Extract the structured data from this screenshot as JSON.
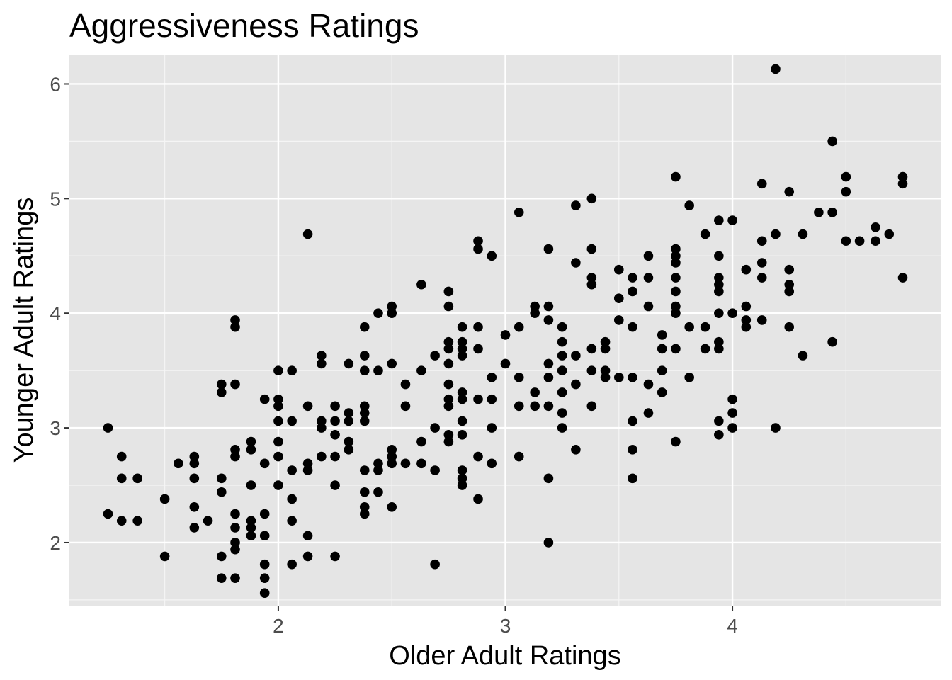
{
  "chart_data": {
    "type": "scatter",
    "title": "Aggressiveness Ratings",
    "xlabel": "Older Adult Ratings",
    "ylabel": "Younger Adult Ratings",
    "xlim": [
      1.08,
      4.92
    ],
    "ylim": [
      1.45,
      6.25
    ],
    "x_ticks": [
      2,
      3,
      4
    ],
    "y_ticks": [
      2,
      3,
      4,
      5,
      6
    ],
    "x_tick_labels": [
      "2",
      "3",
      "4"
    ],
    "y_tick_labels": [
      "2",
      "3",
      "4",
      "5",
      "6"
    ],
    "grid": true,
    "panel_color": "#e5e5e5",
    "point_color": "#000000",
    "points": [
      [
        1.25,
        3.0
      ],
      [
        1.25,
        2.25
      ],
      [
        1.31,
        2.75
      ],
      [
        1.31,
        2.56
      ],
      [
        1.31,
        2.19
      ],
      [
        1.38,
        2.56
      ],
      [
        1.38,
        2.19
      ],
      [
        1.5,
        2.38
      ],
      [
        1.5,
        1.88
      ],
      [
        1.56,
        2.69
      ],
      [
        1.63,
        2.75
      ],
      [
        1.63,
        2.69
      ],
      [
        1.63,
        2.56
      ],
      [
        1.63,
        2.31
      ],
      [
        1.63,
        2.13
      ],
      [
        1.69,
        2.19
      ],
      [
        1.75,
        3.38
      ],
      [
        1.75,
        3.31
      ],
      [
        1.75,
        2.56
      ],
      [
        1.75,
        2.44
      ],
      [
        1.75,
        1.88
      ],
      [
        1.75,
        1.69
      ],
      [
        1.81,
        3.94
      ],
      [
        1.81,
        3.88
      ],
      [
        1.81,
        3.38
      ],
      [
        1.81,
        2.81
      ],
      [
        1.81,
        2.75
      ],
      [
        1.81,
        2.25
      ],
      [
        1.81,
        2.13
      ],
      [
        1.81,
        2.0
      ],
      [
        1.81,
        1.94
      ],
      [
        1.81,
        1.69
      ],
      [
        1.88,
        2.88
      ],
      [
        1.88,
        2.81
      ],
      [
        1.88,
        2.5
      ],
      [
        1.88,
        2.19
      ],
      [
        1.88,
        2.13
      ],
      [
        1.88,
        2.06
      ],
      [
        1.94,
        3.25
      ],
      [
        1.94,
        2.69
      ],
      [
        1.94,
        2.25
      ],
      [
        1.94,
        2.06
      ],
      [
        1.94,
        1.81
      ],
      [
        1.94,
        1.69
      ],
      [
        1.94,
        1.56
      ],
      [
        2.0,
        3.5
      ],
      [
        2.0,
        3.25
      ],
      [
        2.0,
        3.19
      ],
      [
        2.0,
        3.06
      ],
      [
        2.0,
        2.88
      ],
      [
        2.0,
        2.75
      ],
      [
        2.0,
        2.5
      ],
      [
        2.06,
        3.5
      ],
      [
        2.06,
        3.06
      ],
      [
        2.06,
        2.63
      ],
      [
        2.06,
        2.38
      ],
      [
        2.06,
        2.19
      ],
      [
        2.06,
        1.81
      ],
      [
        2.13,
        4.69
      ],
      [
        2.13,
        3.19
      ],
      [
        2.13,
        2.69
      ],
      [
        2.13,
        2.63
      ],
      [
        2.13,
        2.06
      ],
      [
        2.13,
        1.88
      ],
      [
        2.19,
        3.63
      ],
      [
        2.19,
        3.56
      ],
      [
        2.19,
        3.06
      ],
      [
        2.19,
        3.0
      ],
      [
        2.19,
        2.75
      ],
      [
        2.25,
        3.19
      ],
      [
        2.25,
        3.06
      ],
      [
        2.25,
        2.94
      ],
      [
        2.25,
        2.75
      ],
      [
        2.25,
        2.5
      ],
      [
        2.25,
        1.88
      ],
      [
        2.31,
        3.56
      ],
      [
        2.31,
        3.13
      ],
      [
        2.31,
        3.06
      ],
      [
        2.31,
        2.88
      ],
      [
        2.31,
        2.81
      ],
      [
        2.38,
        3.88
      ],
      [
        2.38,
        3.63
      ],
      [
        2.38,
        3.5
      ],
      [
        2.38,
        3.19
      ],
      [
        2.38,
        3.13
      ],
      [
        2.38,
        3.06
      ],
      [
        2.38,
        2.63
      ],
      [
        2.38,
        2.44
      ],
      [
        2.38,
        2.31
      ],
      [
        2.38,
        2.25
      ],
      [
        2.44,
        4.0
      ],
      [
        2.44,
        3.5
      ],
      [
        2.44,
        2.69
      ],
      [
        2.44,
        2.63
      ],
      [
        2.44,
        2.44
      ],
      [
        2.5,
        4.06
      ],
      [
        2.5,
        4.0
      ],
      [
        2.5,
        3.56
      ],
      [
        2.5,
        2.81
      ],
      [
        2.5,
        2.75
      ],
      [
        2.5,
        2.69
      ],
      [
        2.5,
        2.31
      ],
      [
        2.56,
        3.38
      ],
      [
        2.56,
        3.19
      ],
      [
        2.56,
        2.69
      ],
      [
        2.63,
        4.25
      ],
      [
        2.63,
        3.5
      ],
      [
        2.63,
        2.88
      ],
      [
        2.63,
        2.69
      ],
      [
        2.69,
        3.63
      ],
      [
        2.69,
        3.0
      ],
      [
        2.69,
        2.63
      ],
      [
        2.69,
        1.81
      ],
      [
        2.75,
        4.19
      ],
      [
        2.75,
        4.06
      ],
      [
        2.75,
        3.75
      ],
      [
        2.75,
        3.69
      ],
      [
        2.75,
        3.56
      ],
      [
        2.75,
        3.38
      ],
      [
        2.75,
        3.25
      ],
      [
        2.75,
        3.19
      ],
      [
        2.75,
        2.94
      ],
      [
        2.75,
        2.88
      ],
      [
        2.81,
        3.88
      ],
      [
        2.81,
        3.75
      ],
      [
        2.81,
        3.69
      ],
      [
        2.81,
        3.63
      ],
      [
        2.81,
        3.31
      ],
      [
        2.81,
        3.25
      ],
      [
        2.81,
        3.06
      ],
      [
        2.81,
        2.94
      ],
      [
        2.81,
        2.63
      ],
      [
        2.81,
        2.56
      ],
      [
        2.81,
        2.5
      ],
      [
        2.88,
        4.63
      ],
      [
        2.88,
        4.56
      ],
      [
        2.88,
        3.88
      ],
      [
        2.88,
        3.69
      ],
      [
        2.88,
        3.25
      ],
      [
        2.88,
        2.75
      ],
      [
        2.88,
        2.38
      ],
      [
        2.94,
        4.5
      ],
      [
        2.94,
        3.44
      ],
      [
        2.94,
        3.25
      ],
      [
        2.94,
        3.0
      ],
      [
        2.94,
        2.69
      ],
      [
        3.0,
        3.81
      ],
      [
        3.0,
        3.56
      ],
      [
        3.06,
        4.88
      ],
      [
        3.06,
        3.88
      ],
      [
        3.06,
        3.44
      ],
      [
        3.06,
        3.19
      ],
      [
        3.06,
        2.75
      ],
      [
        3.13,
        4.06
      ],
      [
        3.13,
        4.0
      ],
      [
        3.13,
        3.31
      ],
      [
        3.13,
        3.19
      ],
      [
        3.19,
        4.56
      ],
      [
        3.19,
        4.06
      ],
      [
        3.19,
        3.94
      ],
      [
        3.19,
        3.56
      ],
      [
        3.19,
        3.44
      ],
      [
        3.19,
        3.19
      ],
      [
        3.19,
        2.56
      ],
      [
        3.19,
        2.0
      ],
      [
        3.25,
        3.88
      ],
      [
        3.25,
        3.75
      ],
      [
        3.25,
        3.63
      ],
      [
        3.25,
        3.5
      ],
      [
        3.25,
        3.31
      ],
      [
        3.25,
        3.13
      ],
      [
        3.25,
        3.0
      ],
      [
        3.31,
        4.94
      ],
      [
        3.31,
        4.44
      ],
      [
        3.31,
        3.63
      ],
      [
        3.31,
        3.38
      ],
      [
        3.31,
        2.81
      ],
      [
        3.38,
        5.0
      ],
      [
        3.38,
        4.56
      ],
      [
        3.38,
        4.31
      ],
      [
        3.38,
        4.25
      ],
      [
        3.38,
        3.69
      ],
      [
        3.38,
        3.5
      ],
      [
        3.38,
        3.19
      ],
      [
        3.44,
        3.75
      ],
      [
        3.44,
        3.69
      ],
      [
        3.44,
        3.5
      ],
      [
        3.44,
        3.44
      ],
      [
        3.5,
        4.38
      ],
      [
        3.5,
        4.13
      ],
      [
        3.5,
        3.94
      ],
      [
        3.5,
        3.44
      ],
      [
        3.56,
        4.31
      ],
      [
        3.56,
        4.19
      ],
      [
        3.56,
        3.88
      ],
      [
        3.56,
        3.44
      ],
      [
        3.56,
        3.06
      ],
      [
        3.56,
        2.81
      ],
      [
        3.56,
        2.56
      ],
      [
        3.63,
        4.5
      ],
      [
        3.63,
        4.31
      ],
      [
        3.63,
        4.06
      ],
      [
        3.63,
        3.38
      ],
      [
        3.63,
        3.13
      ],
      [
        3.69,
        3.81
      ],
      [
        3.69,
        3.69
      ],
      [
        3.69,
        3.5
      ],
      [
        3.69,
        3.31
      ],
      [
        3.75,
        5.19
      ],
      [
        3.75,
        4.56
      ],
      [
        3.75,
        4.5
      ],
      [
        3.75,
        4.44
      ],
      [
        3.75,
        4.31
      ],
      [
        3.75,
        4.19
      ],
      [
        3.75,
        4.06
      ],
      [
        3.75,
        4.0
      ],
      [
        3.75,
        3.69
      ],
      [
        3.75,
        2.88
      ],
      [
        3.81,
        4.94
      ],
      [
        3.81,
        3.88
      ],
      [
        3.81,
        3.44
      ],
      [
        3.88,
        4.69
      ],
      [
        3.88,
        3.88
      ],
      [
        3.88,
        3.69
      ],
      [
        3.94,
        4.81
      ],
      [
        3.94,
        4.5
      ],
      [
        3.94,
        4.31
      ],
      [
        3.94,
        4.25
      ],
      [
        3.94,
        4.19
      ],
      [
        3.94,
        4.0
      ],
      [
        3.94,
        3.75
      ],
      [
        3.94,
        3.69
      ],
      [
        3.94,
        3.06
      ],
      [
        3.94,
        2.94
      ],
      [
        4.0,
        4.81
      ],
      [
        4.0,
        4.0
      ],
      [
        4.0,
        3.25
      ],
      [
        4.0,
        3.13
      ],
      [
        4.0,
        3.0
      ],
      [
        4.06,
        4.38
      ],
      [
        4.06,
        4.06
      ],
      [
        4.06,
        3.94
      ],
      [
        4.06,
        3.88
      ],
      [
        4.13,
        5.13
      ],
      [
        4.13,
        4.63
      ],
      [
        4.13,
        4.44
      ],
      [
        4.13,
        4.31
      ],
      [
        4.13,
        3.94
      ],
      [
        4.19,
        6.13
      ],
      [
        4.19,
        4.69
      ],
      [
        4.19,
        3.0
      ],
      [
        4.25,
        5.06
      ],
      [
        4.25,
        4.38
      ],
      [
        4.25,
        4.25
      ],
      [
        4.25,
        4.19
      ],
      [
        4.25,
        3.88
      ],
      [
        4.31,
        4.69
      ],
      [
        4.31,
        3.63
      ],
      [
        4.38,
        4.88
      ],
      [
        4.44,
        5.5
      ],
      [
        4.44,
        4.88
      ],
      [
        4.44,
        3.75
      ],
      [
        4.5,
        5.19
      ],
      [
        4.5,
        5.06
      ],
      [
        4.5,
        4.63
      ],
      [
        4.56,
        4.63
      ],
      [
        4.63,
        4.75
      ],
      [
        4.63,
        4.63
      ],
      [
        4.69,
        4.69
      ],
      [
        4.75,
        5.19
      ],
      [
        4.75,
        5.13
      ],
      [
        4.75,
        4.31
      ]
    ]
  }
}
